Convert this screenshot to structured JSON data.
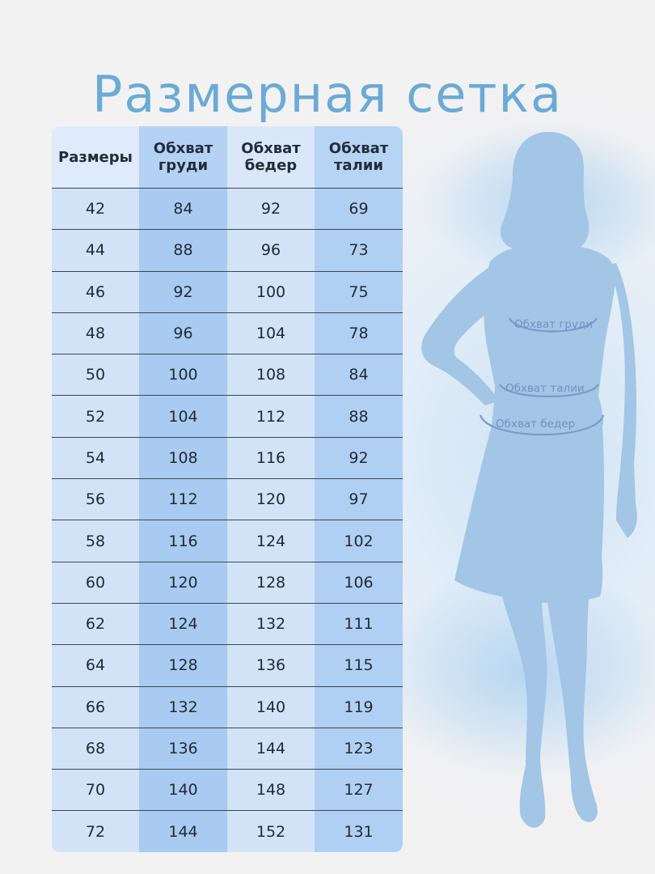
{
  "title": "Размерная сетка",
  "table": {
    "headers": [
      {
        "line1": "Размеры",
        "line2": ""
      },
      {
        "line1": "Обхват",
        "line2": "груди"
      },
      {
        "line1": "Обхват",
        "line2": "бедер"
      },
      {
        "line1": "Обхват",
        "line2": "талии"
      }
    ],
    "rows": [
      [
        "42",
        "84",
        "92",
        "69"
      ],
      [
        "44",
        "88",
        "96",
        "73"
      ],
      [
        "46",
        "92",
        "100",
        "75"
      ],
      [
        "48",
        "96",
        "104",
        "78"
      ],
      [
        "50",
        "100",
        "108",
        "84"
      ],
      [
        "52",
        "104",
        "112",
        "88"
      ],
      [
        "54",
        "108",
        "116",
        "92"
      ],
      [
        "56",
        "112",
        "120",
        "97"
      ],
      [
        "58",
        "116",
        "124",
        "102"
      ],
      [
        "60",
        "120",
        "128",
        "106"
      ],
      [
        "62",
        "124",
        "132",
        "111"
      ],
      [
        "64",
        "128",
        "136",
        "115"
      ],
      [
        "66",
        "132",
        "140",
        "119"
      ],
      [
        "68",
        "136",
        "144",
        "123"
      ],
      [
        "70",
        "140",
        "148",
        "127"
      ],
      [
        "72",
        "144",
        "152",
        "131"
      ]
    ]
  },
  "figure": {
    "chest_label": "Обхват груди",
    "waist_label": "Обхват талии",
    "hip_label": "Обхват бедер"
  },
  "colors": {
    "title": "#6aaad6",
    "column_light": "#d2e3f8",
    "column_dark": "#a9cbf1",
    "silhouette": "#a3c5e6",
    "measure_line": "#7a9cc8"
  }
}
